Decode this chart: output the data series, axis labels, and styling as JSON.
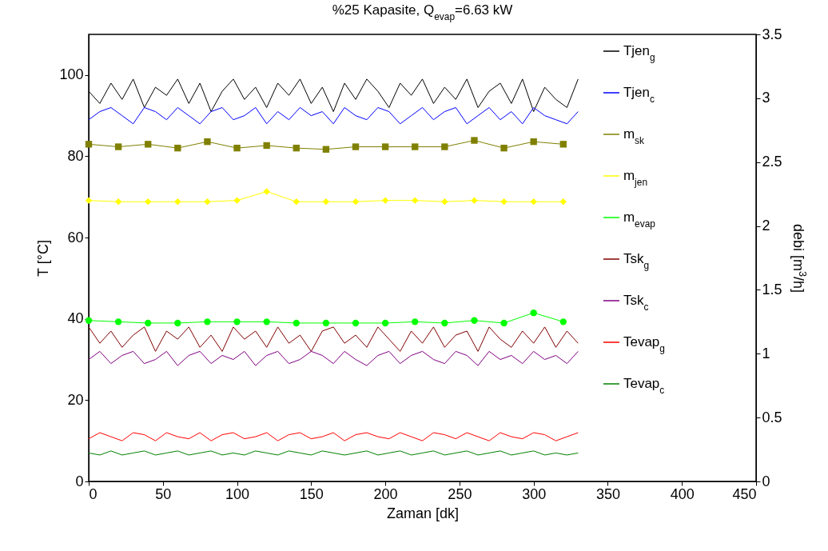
{
  "chart_data": {
    "type": "line",
    "title": "%25 Kapasite, Q$_{evap}$=6.63 kW",
    "xlabel": "Zaman  [dk]",
    "ylabel": "T [°C]",
    "y2label": "debi  [m$^{3}$/h]",
    "xlim": [
      0,
      450
    ],
    "xticks": [
      0,
      50,
      100,
      150,
      200,
      250,
      300,
      350,
      400,
      450
    ],
    "ylim": [
      0,
      110
    ],
    "yticks": [
      0,
      20,
      40,
      60,
      80,
      100
    ],
    "y2lim": [
      0,
      3.5
    ],
    "y2ticks": [
      0,
      0.5,
      1,
      1.5,
      2,
      2.5,
      3,
      3.5
    ],
    "grid": false,
    "legend": "right",
    "x": [
      0,
      7.5,
      15,
      22.5,
      30,
      37.5,
      45,
      52.5,
      60,
      67.5,
      75,
      82.5,
      90,
      97.5,
      105,
      112.5,
      120,
      127.5,
      135,
      142.5,
      150,
      157.5,
      165,
      172.5,
      180,
      187.5,
      195,
      202.5,
      210,
      217.5,
      225,
      232.5,
      240,
      247.5,
      255,
      262.5,
      270,
      277.5,
      285,
      292.5,
      300,
      307.5,
      315,
      322.5,
      330
    ],
    "series": [
      {
        "name": "Tjen$_{g}$",
        "color": "#000000",
        "values": [
          96,
          93,
          98,
          94,
          99,
          92,
          97,
          95,
          99,
          93,
          98,
          91,
          96,
          99,
          94,
          97,
          92,
          98,
          95,
          99,
          93,
          97,
          91,
          98,
          94,
          99,
          96,
          92,
          98,
          95,
          99,
          93,
          97,
          94,
          99,
          92,
          96,
          98,
          93,
          99,
          91,
          97,
          94,
          92,
          99
        ]
      },
      {
        "name": "Tjen$_{c}$",
        "color": "#0000ff",
        "values": [
          89,
          91,
          92,
          90,
          88,
          92,
          91,
          89,
          92,
          90,
          88,
          91,
          92,
          89,
          90,
          92,
          88,
          91,
          89,
          92,
          90,
          91,
          88,
          92,
          90,
          89,
          92,
          91,
          88,
          90,
          92,
          89,
          91,
          92,
          88,
          90,
          92,
          89,
          91,
          88,
          92,
          90,
          89,
          88,
          91
        ]
      },
      {
        "name": "m$_{sk}$",
        "color": "#808000",
        "axis": "y2",
        "marker": "square",
        "x": [
          0,
          20,
          40,
          60,
          80,
          100,
          120,
          140,
          160,
          180,
          200,
          220,
          240,
          260,
          280,
          300,
          320
        ],
        "values": [
          2.64,
          2.62,
          2.64,
          2.61,
          2.66,
          2.61,
          2.63,
          2.61,
          2.6,
          2.62,
          2.62,
          2.62,
          2.62,
          2.67,
          2.61,
          2.66,
          2.64
        ]
      },
      {
        "name": "m$_{jen}$",
        "color": "#ffff00",
        "axis": "y2",
        "marker": "diamond",
        "x": [
          0,
          20,
          40,
          60,
          80,
          100,
          120,
          140,
          160,
          180,
          200,
          220,
          240,
          260,
          280,
          300,
          320
        ],
        "values": [
          2.2,
          2.19,
          2.19,
          2.19,
          2.19,
          2.2,
          2.27,
          2.19,
          2.19,
          2.19,
          2.2,
          2.2,
          2.19,
          2.2,
          2.19,
          2.19,
          2.19
        ]
      },
      {
        "name": "m$_{evap}$",
        "color": "#00ff00",
        "axis": "y2",
        "marker": "circle",
        "x": [
          0,
          20,
          40,
          60,
          80,
          100,
          120,
          140,
          160,
          180,
          200,
          220,
          240,
          260,
          280,
          300,
          320
        ],
        "values": [
          1.26,
          1.25,
          1.24,
          1.24,
          1.25,
          1.25,
          1.25,
          1.24,
          1.24,
          1.24,
          1.24,
          1.25,
          1.24,
          1.26,
          1.24,
          1.32,
          1.25
        ]
      },
      {
        "name": "Tsk$_{g}$",
        "color": "#800000",
        "values": [
          38,
          34,
          37,
          33,
          36,
          38,
          32,
          37,
          35,
          38,
          33,
          36,
          32,
          38,
          35,
          37,
          33,
          38,
          34,
          36,
          32,
          37,
          38,
          34,
          36,
          33,
          38,
          35,
          32,
          37,
          34,
          38,
          33,
          36,
          37,
          32,
          38,
          35,
          33,
          37,
          34,
          38,
          33,
          37,
          34
        ]
      },
      {
        "name": "Tsk$_{c}$",
        "color": "#800080",
        "values": [
          30,
          32,
          29,
          31,
          32,
          29,
          30,
          32,
          28.5,
          31,
          32,
          29,
          31,
          30,
          32,
          28.5,
          31,
          32,
          29,
          30,
          32,
          31,
          29,
          32,
          30,
          28.5,
          31,
          32,
          29,
          31,
          32,
          30,
          29,
          32,
          31,
          28.5,
          32,
          30,
          31,
          29,
          32,
          30,
          31,
          29,
          32
        ]
      },
      {
        "name": "Tevap$_{g}$",
        "color": "#ff0000",
        "values": [
          10.5,
          12,
          11,
          10,
          12,
          11.5,
          10,
          12,
          11,
          10.5,
          12,
          10,
          11.5,
          12,
          10.5,
          11,
          12,
          10,
          11.5,
          12,
          10.5,
          11,
          12,
          10,
          11.5,
          12,
          11,
          10.5,
          12,
          11,
          10,
          12,
          11.5,
          10.5,
          12,
          11,
          10,
          12,
          11,
          10.5,
          12,
          11.5,
          10,
          11,
          12
        ]
      },
      {
        "name": "Tevap$_{c}$",
        "color": "#008000",
        "values": [
          7,
          6.5,
          7.5,
          6.5,
          7,
          7.5,
          6.5,
          7,
          7.5,
          6.5,
          7,
          7.5,
          6.5,
          7,
          6.5,
          7.5,
          7,
          6.5,
          7.5,
          7,
          6.5,
          7.5,
          7,
          6.5,
          7,
          7.5,
          6.5,
          7,
          7.5,
          6.5,
          7,
          7.5,
          6.5,
          7,
          7.5,
          6.5,
          7,
          7.5,
          6.5,
          7,
          7.5,
          6.5,
          7,
          6.5,
          7
        ]
      }
    ]
  }
}
